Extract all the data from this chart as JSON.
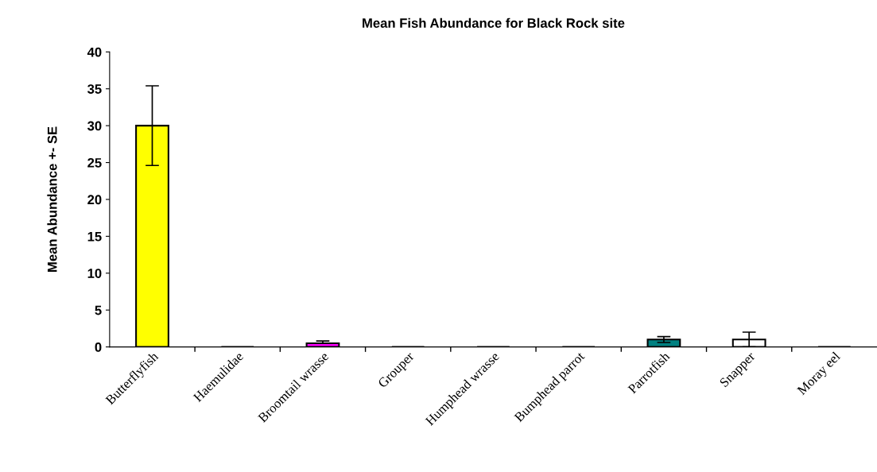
{
  "chart_data": {
    "type": "bar",
    "title": "Mean Fish Abundance for Black Rock site",
    "ylabel": "Mean Abundance +- SE",
    "categories": [
      "Butterflyfish",
      "Haemulidae",
      "Broomtail wrasse",
      "Grouper",
      "Humphead wrasse",
      "Bumphead parrot",
      "Parrotfish",
      "Snapper",
      "Moray eel"
    ],
    "values": [
      30,
      0,
      0.5,
      0,
      0,
      0,
      1.0,
      1.0,
      0
    ],
    "errors": [
      5.4,
      null,
      [
        0.5,
        0.8
      ],
      null,
      null,
      null,
      0.4,
      1.0,
      null
    ],
    "colors": [
      "#ffff00",
      "#000000",
      "#ff00ff",
      "#000000",
      "#000000",
      "#000000",
      "#008080",
      "#ffffff",
      "#000000"
    ],
    "ylim": [
      0,
      40
    ],
    "yticks": [
      0,
      5,
      10,
      15,
      20,
      25,
      30,
      35,
      40
    ],
    "grid": false
  }
}
